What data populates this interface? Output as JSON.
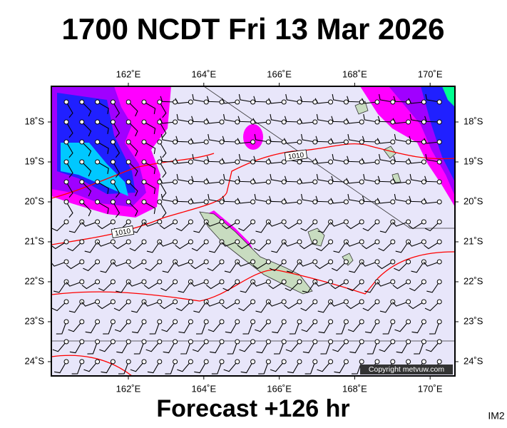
{
  "header": {
    "title": "1700 NCDT Fri 13 Mar 2026"
  },
  "map": {
    "longitude_labels": [
      "162˚E",
      "164˚E",
      "166˚E",
      "168˚E",
      "170˚E"
    ],
    "latitude_labels": [
      "18˚S",
      "19˚S",
      "20˚S",
      "21˚S",
      "22˚S",
      "23˚S",
      "24˚S"
    ],
    "isobar_labels": [
      "1010",
      "1010"
    ],
    "copyright": "Copyright metvuw.com"
  },
  "footer": {
    "forecast": "Forecast +126 hr",
    "image_id": "IM2"
  }
}
